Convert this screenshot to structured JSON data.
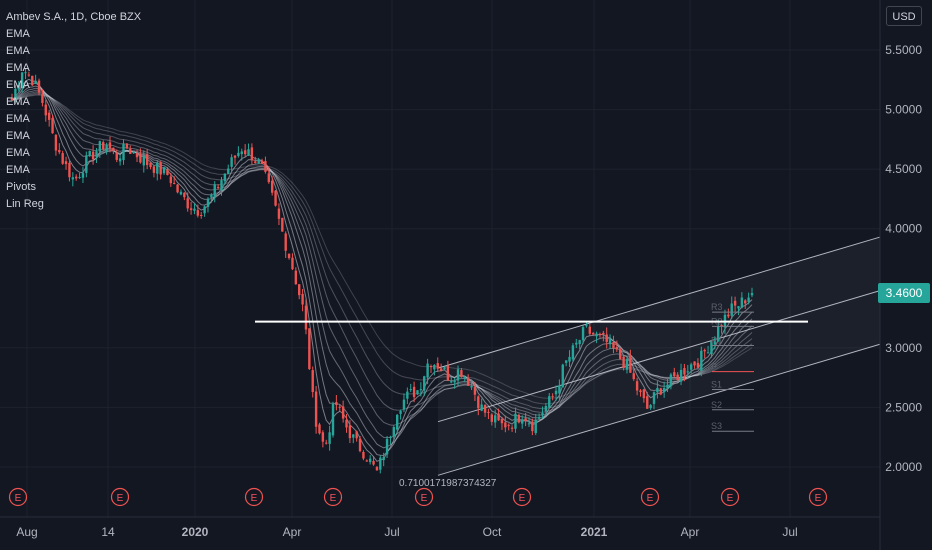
{
  "header": {
    "symbol_line": "Ambev S.A., 1D, Cboe BZX",
    "indicators": [
      "EMA",
      "EMA",
      "EMA",
      "EMA",
      "EMA",
      "EMA",
      "EMA",
      "EMA",
      "EMA",
      "Pivots",
      "Lin Reg"
    ]
  },
  "currency": "USD",
  "colors": {
    "background": "#131722",
    "up": "#26a69a",
    "down": "#ef5350",
    "grid": "#1e222d",
    "axis_text": "#b2b5be",
    "last_price": "#26a69a",
    "channel": "#b2b5be",
    "pivot_r": "#ef5350"
  },
  "chart_data": {
    "type": "candlestick",
    "y_ticks": [
      "5.5000",
      "5.0000",
      "4.5000",
      "4.0000",
      "3.0000",
      "2.5000",
      "2.0000"
    ],
    "x_ticks": [
      "Aug",
      "14",
      "2020",
      "Apr",
      "Jul",
      "Oct",
      "2021",
      "Apr",
      "Jul"
    ],
    "ylim": [
      1.58,
      5.92
    ],
    "last_price": "3.4600",
    "horizontal_line": 3.22,
    "regression_label": "0.7100171987374327",
    "pivot_labels": [
      "R3",
      "R2",
      "R1",
      "P",
      "S1",
      "S2",
      "S3"
    ],
    "earnings_markers": [
      "E",
      "E",
      "E",
      "E",
      "E",
      "E",
      "E",
      "E",
      "E"
    ],
    "price_path": [
      5.08,
      5.35,
      5.25,
      5.05,
      4.75,
      4.55,
      4.4,
      4.55,
      4.65,
      4.72,
      4.6,
      4.68,
      4.62,
      4.55,
      4.5,
      4.45,
      4.3,
      4.2,
      4.15,
      4.25,
      4.4,
      4.55,
      4.68,
      4.62,
      4.5,
      4.25,
      3.95,
      3.65,
      3.3,
      2.45,
      2.15,
      2.55,
      2.35,
      2.2,
      2.1,
      1.95,
      2.2,
      2.5,
      2.6,
      2.65,
      2.9,
      2.85,
      2.75,
      2.82,
      2.7,
      2.5,
      2.4,
      2.35,
      2.38,
      2.45,
      2.35,
      2.48,
      2.6,
      2.85,
      3.0,
      3.15,
      3.1,
      3.05,
      2.95,
      2.85,
      2.65,
      2.48,
      2.65,
      2.7,
      2.78,
      2.85,
      2.9,
      3.05,
      3.2,
      3.32,
      3.38,
      3.47
    ]
  }
}
